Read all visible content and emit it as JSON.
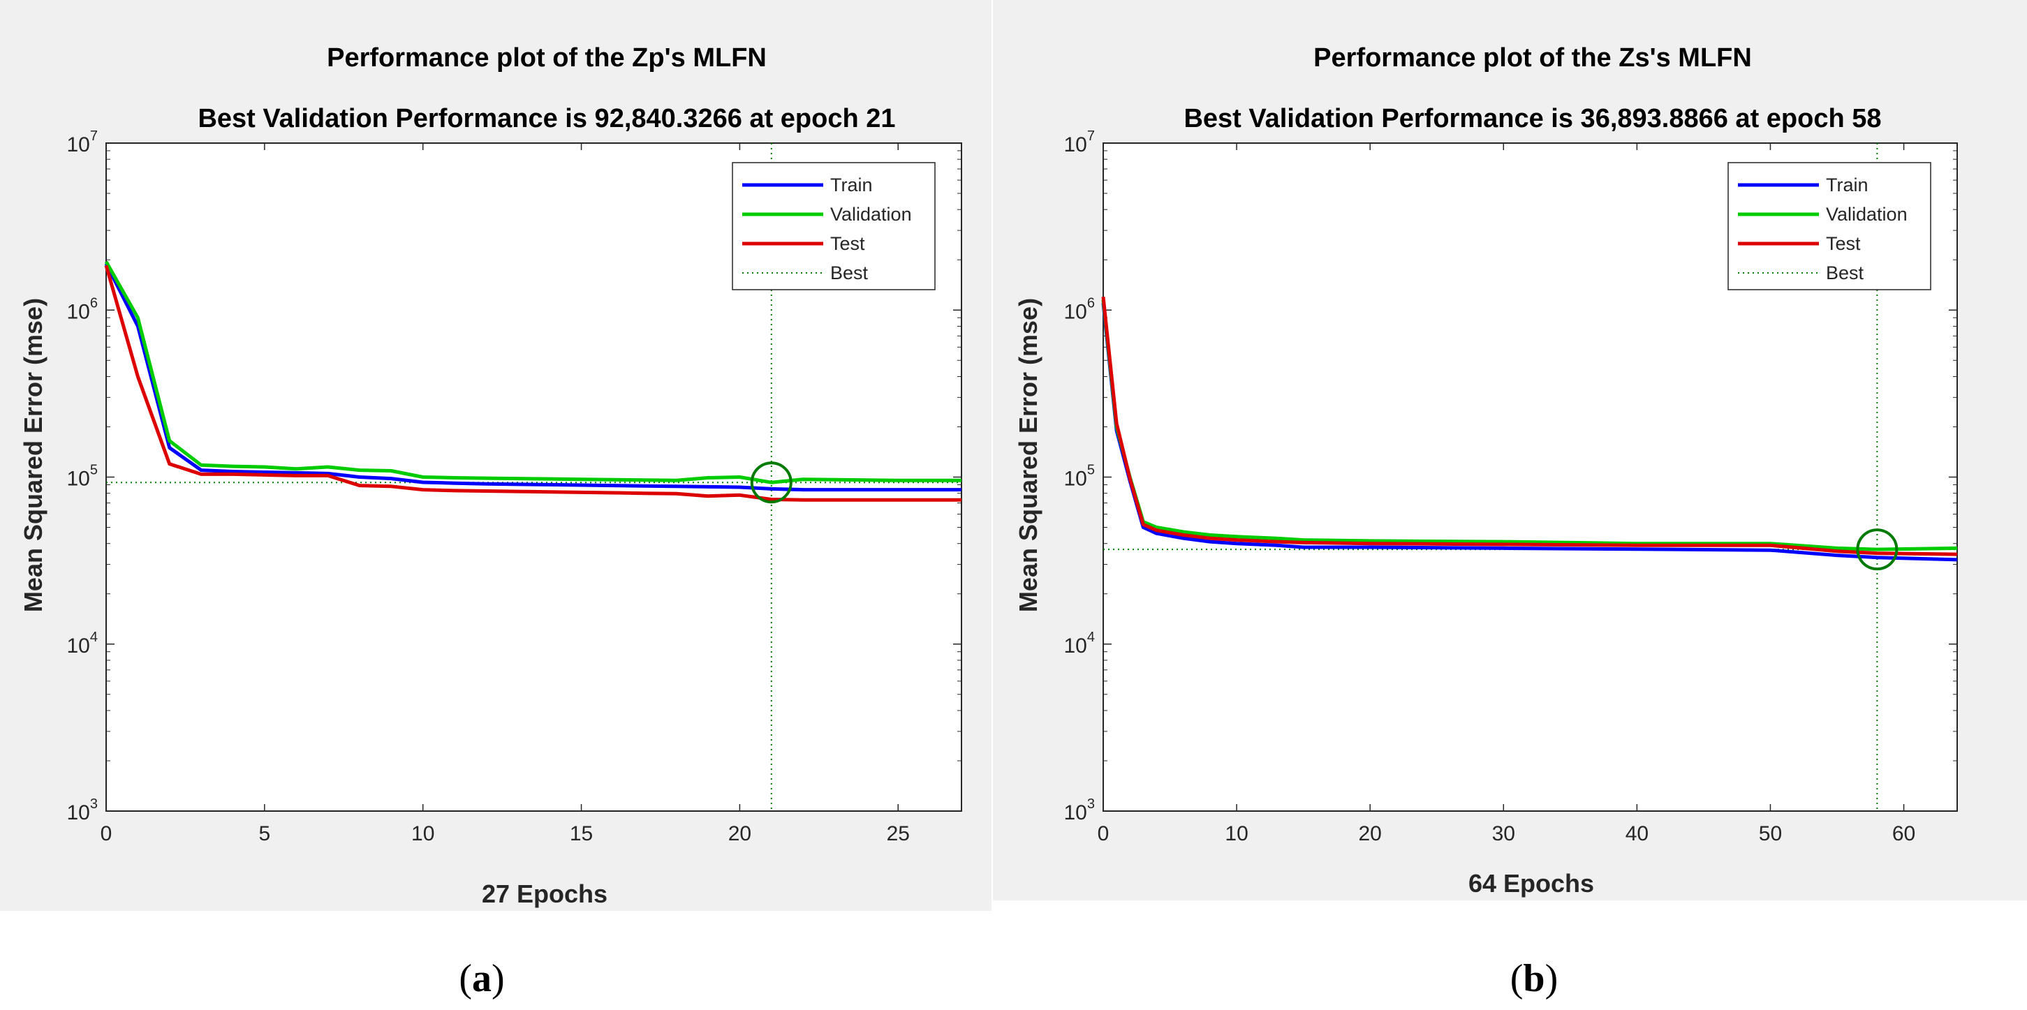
{
  "chart_data": [
    {
      "type": "line",
      "panel_label": "a",
      "title": "Performance plot of the Zp's MLFN",
      "subtitle": "Best Validation Performance is 92,840.3266 at epoch 21",
      "xlabel": "27 Epochs",
      "ylabel": "Mean Squared Error  (mse)",
      "xlim": [
        0,
        27
      ],
      "ylim": [
        1000,
        10000000
      ],
      "yscale": "log",
      "xticks": [
        0,
        5,
        10,
        15,
        20,
        25
      ],
      "yticks": [
        {
          "base": "10",
          "exp": "3",
          "value": 1000
        },
        {
          "base": "10",
          "exp": "4",
          "value": 10000
        },
        {
          "base": "10",
          "exp": "5",
          "value": 100000
        },
        {
          "base": "10",
          "exp": "6",
          "value": 1000000
        },
        {
          "base": "10",
          "exp": "7",
          "value": 10000000
        }
      ],
      "legend": {
        "position": "top-right",
        "entries": [
          "Train",
          "Validation",
          "Test",
          "Best"
        ]
      },
      "best": {
        "epoch": 21,
        "value": 92840
      },
      "series": [
        {
          "name": "Train",
          "color": "#0000ff",
          "x": [
            0,
            1,
            2,
            3,
            4,
            5,
            6,
            7,
            8,
            9,
            10,
            11,
            12,
            13,
            14,
            15,
            16,
            17,
            18,
            19,
            20,
            21,
            22,
            23,
            24,
            25,
            26,
            27
          ],
          "values": [
            1900000,
            800000,
            150000,
            110000,
            108000,
            107000,
            106000,
            105000,
            100000,
            98000,
            93000,
            92000,
            91000,
            90500,
            90000,
            89500,
            89000,
            88500,
            88000,
            87500,
            87000,
            85000,
            84000,
            84000,
            84000,
            84000,
            84000,
            84000
          ]
        },
        {
          "name": "Validation",
          "color": "#00cc00",
          "x": [
            0,
            1,
            2,
            3,
            4,
            5,
            6,
            7,
            8,
            9,
            10,
            11,
            12,
            13,
            14,
            15,
            16,
            17,
            18,
            19,
            20,
            21,
            22,
            23,
            24,
            25,
            26,
            27
          ],
          "values": [
            1950000,
            900000,
            165000,
            118000,
            116000,
            115000,
            112000,
            115000,
            110000,
            109000,
            100000,
            99000,
            98500,
            98000,
            97500,
            97000,
            96500,
            96000,
            95500,
            99000,
            100000,
            92840,
            97000,
            96500,
            96000,
            95500,
            95500,
            95500
          ]
        },
        {
          "name": "Test",
          "color": "#dd0000",
          "x": [
            0,
            1,
            2,
            3,
            4,
            5,
            6,
            7,
            8,
            9,
            10,
            11,
            12,
            13,
            14,
            15,
            16,
            17,
            18,
            19,
            20,
            21,
            22,
            23,
            24,
            25,
            26,
            27
          ],
          "values": [
            1850000,
            400000,
            120000,
            104000,
            104000,
            103000,
            102000,
            102000,
            89000,
            88000,
            84000,
            83000,
            82500,
            82000,
            81500,
            81000,
            80500,
            80000,
            79500,
            77000,
            78000,
            73500,
            73000,
            73000,
            73000,
            73000,
            73000,
            73000
          ]
        }
      ]
    },
    {
      "type": "line",
      "panel_label": "b",
      "title": "Performance plot of the Zs's MLFN",
      "subtitle": "Best Validation Performance is 36,893.8866 at epoch 58",
      "xlabel": "64 Epochs",
      "ylabel": "Mean Squared Error  (mse)",
      "xlim": [
        0,
        64
      ],
      "ylim": [
        1000,
        10000000
      ],
      "yscale": "log",
      "xticks": [
        0,
        10,
        20,
        30,
        40,
        50,
        60
      ],
      "yticks": [
        {
          "base": "10",
          "exp": "3",
          "value": 1000
        },
        {
          "base": "10",
          "exp": "4",
          "value": 10000
        },
        {
          "base": "10",
          "exp": "5",
          "value": 100000
        },
        {
          "base": "10",
          "exp": "6",
          "value": 1000000
        },
        {
          "base": "10",
          "exp": "7",
          "value": 10000000
        }
      ],
      "legend": {
        "position": "top-right",
        "entries": [
          "Train",
          "Validation",
          "Test",
          "Best"
        ]
      },
      "best": {
        "epoch": 58,
        "value": 36894
      },
      "series": [
        {
          "name": "Train",
          "color": "#0000ff",
          "x": [
            0,
            1,
            2,
            3,
            4,
            6,
            8,
            10,
            13,
            15,
            20,
            30,
            40,
            50,
            55,
            58,
            64
          ],
          "values": [
            1100000,
            190000,
            95000,
            50000,
            46000,
            43000,
            41000,
            40000,
            39000,
            38000,
            38000,
            37500,
            37000,
            36500,
            34000,
            33000,
            32000
          ]
        },
        {
          "name": "Validation",
          "color": "#00cc00",
          "x": [
            0,
            1,
            2,
            3,
            4,
            6,
            8,
            10,
            13,
            15,
            20,
            30,
            40,
            50,
            55,
            58,
            64
          ],
          "values": [
            1150000,
            200000,
            100000,
            54000,
            50000,
            47000,
            45000,
            44000,
            43000,
            42000,
            41500,
            41000,
            40000,
            40000,
            37500,
            36894,
            37500
          ]
        },
        {
          "name": "Test",
          "color": "#dd0000",
          "x": [
            0,
            1,
            2,
            3,
            4,
            6,
            8,
            10,
            13,
            15,
            20,
            30,
            40,
            50,
            55,
            58,
            64
          ],
          "values": [
            1200000,
            210000,
            98000,
            52000,
            48000,
            45000,
            43000,
            42000,
            41000,
            40500,
            40000,
            39500,
            39000,
            39000,
            36000,
            35000,
            34500
          ]
        }
      ]
    }
  ]
}
